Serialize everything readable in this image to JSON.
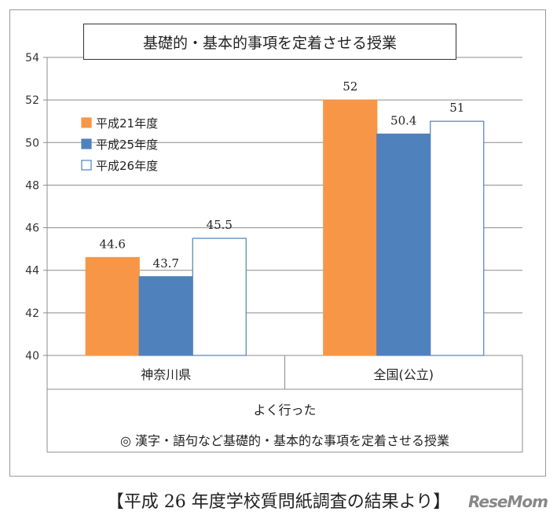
{
  "chart_data": {
    "type": "bar",
    "title": "基礎的・基本的事項を定着させる授業",
    "categories": [
      "神奈川県",
      "全国(公立)"
    ],
    "series": [
      {
        "name": "平成21年度",
        "values": [
          44.6,
          52
        ],
        "labels": [
          "44.6",
          "52"
        ],
        "color": "#f79646",
        "border": "#f79646"
      },
      {
        "name": "平成25年度",
        "values": [
          43.7,
          50.4
        ],
        "labels": [
          "43.7",
          "50.4"
        ],
        "color": "#4f81bd",
        "border": "#4f81bd"
      },
      {
        "name": "平成26年度",
        "values": [
          45.5,
          51
        ],
        "labels": [
          "45.5",
          "51"
        ],
        "color": "#ffffff",
        "border": "#4f81bd"
      }
    ],
    "yticks": [
      "40",
      "42",
      "44",
      "46",
      "48",
      "50",
      "52",
      "54"
    ],
    "ylim": [
      40,
      54
    ],
    "grid": true,
    "legend_position": "top-left",
    "group_label": "よく行った",
    "question": "◎ 漢字・語句など基礎的・基本的な事項を定着させる授業"
  },
  "caption": "【平成 26 年度学校質問紙調査の結果より】",
  "watermark": "ReseMom"
}
